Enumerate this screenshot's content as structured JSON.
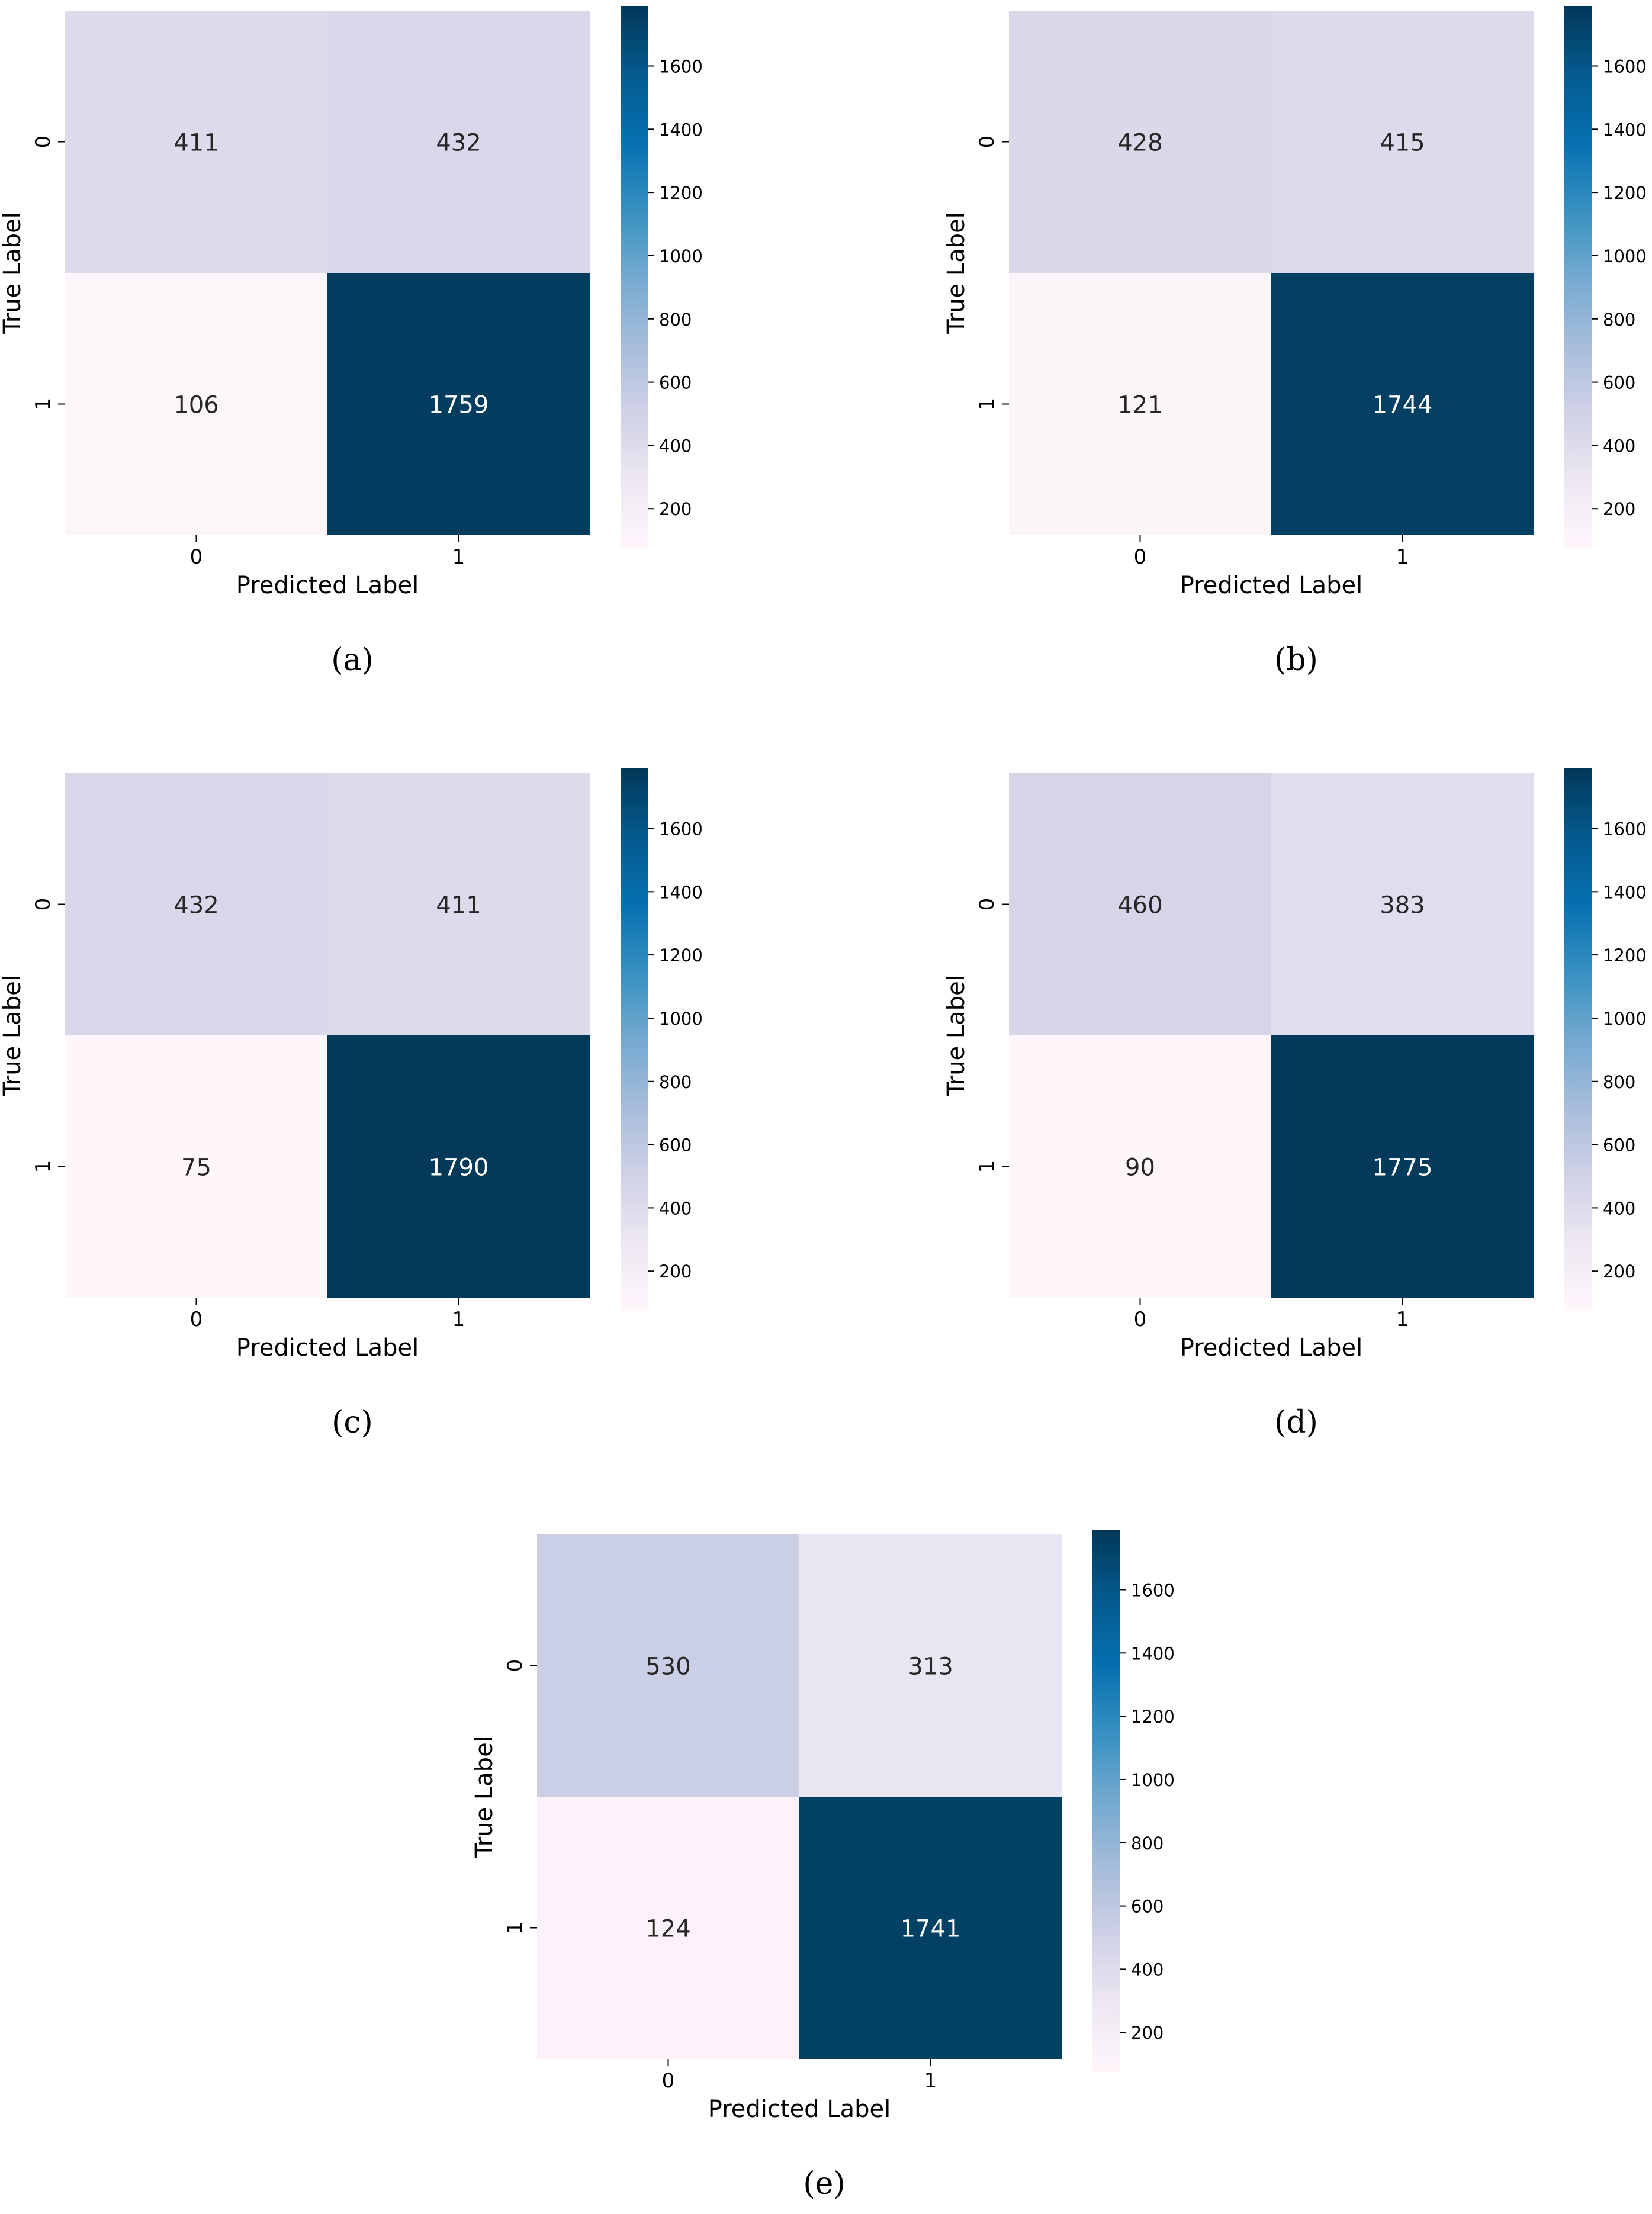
{
  "colormap": {
    "name": "PuBu",
    "stops": [
      "#fff7fb",
      "#ece7f2",
      "#d0d1e6",
      "#a6bddb",
      "#74a9cf",
      "#3690c0",
      "#0570b0",
      "#045a8d",
      "#023858"
    ]
  },
  "chart_data": [
    {
      "type": "heatmap",
      "subcaption": "(a)",
      "xlabel": "Predicted Label",
      "ylabel": "True Label",
      "x_ticklabels": [
        "0",
        "1"
      ],
      "y_ticklabels": [
        "0",
        "1"
      ],
      "values": [
        [
          411,
          432
        ],
        [
          106,
          1759
        ]
      ],
      "color_range": [
        75,
        1790
      ],
      "colorbar_ticks": [
        200,
        400,
        600,
        800,
        1000,
        1200,
        1400,
        1600
      ]
    },
    {
      "type": "heatmap",
      "subcaption": "(b)",
      "xlabel": "Predicted Label",
      "ylabel": "True Label",
      "x_ticklabels": [
        "0",
        "1"
      ],
      "y_ticklabels": [
        "0",
        "1"
      ],
      "values": [
        [
          428,
          415
        ],
        [
          121,
          1744
        ]
      ],
      "color_range": [
        75,
        1790
      ],
      "colorbar_ticks": [
        200,
        400,
        600,
        800,
        1000,
        1200,
        1400,
        1600
      ]
    },
    {
      "type": "heatmap",
      "subcaption": "(c)",
      "xlabel": "Predicted Label",
      "ylabel": "True Label",
      "x_ticklabels": [
        "0",
        "1"
      ],
      "y_ticklabels": [
        "0",
        "1"
      ],
      "values": [
        [
          432,
          411
        ],
        [
          75,
          1790
        ]
      ],
      "color_range": [
        75,
        1790
      ],
      "colorbar_ticks": [
        200,
        400,
        600,
        800,
        1000,
        1200,
        1400,
        1600
      ]
    },
    {
      "type": "heatmap",
      "subcaption": "(d)",
      "xlabel": "Predicted Label",
      "ylabel": "True Label",
      "x_ticklabels": [
        "0",
        "1"
      ],
      "y_ticklabels": [
        "0",
        "1"
      ],
      "values": [
        [
          460,
          383
        ],
        [
          90,
          1775
        ]
      ],
      "color_range": [
        75,
        1790
      ],
      "colorbar_ticks": [
        200,
        400,
        600,
        800,
        1000,
        1200,
        1400,
        1600
      ]
    },
    {
      "type": "heatmap",
      "subcaption": "(e)",
      "xlabel": "Predicted Label",
      "ylabel": "True Label",
      "x_ticklabels": [
        "0",
        "1"
      ],
      "y_ticklabels": [
        "0",
        "1"
      ],
      "values": [
        [
          530,
          313
        ],
        [
          124,
          1741
        ]
      ],
      "color_range": [
        75,
        1790
      ],
      "colorbar_ticks": [
        200,
        400,
        600,
        800,
        1000,
        1200,
        1400,
        1600
      ]
    }
  ]
}
